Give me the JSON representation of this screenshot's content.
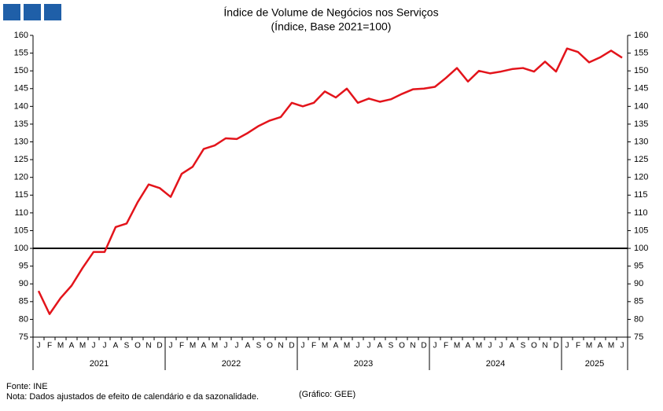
{
  "chart_data": {
    "type": "line",
    "title": "Índice de Volume de Negócios nos Serviços",
    "subtitle": "(Índice, Base 2021=100)",
    "categories": [
      "J",
      "F",
      "M",
      "A",
      "M",
      "J",
      "J",
      "A",
      "S",
      "O",
      "N",
      "D",
      "J",
      "F",
      "M",
      "A",
      "M",
      "J",
      "J",
      "A",
      "S",
      "O",
      "N",
      "D",
      "J",
      "F",
      "M",
      "A",
      "M",
      "J",
      "J",
      "A",
      "S",
      "O",
      "N",
      "D",
      "J",
      "F",
      "M",
      "A",
      "M",
      "J",
      "J",
      "A",
      "S",
      "O",
      "N",
      "D",
      "J",
      "F",
      "M",
      "A",
      "M",
      "J"
    ],
    "years": [
      "2021",
      "2022",
      "2023",
      "2024",
      "2025"
    ],
    "series": [
      {
        "color": "#e3141b",
        "values": [
          88,
          81.5,
          86,
          89.5,
          94.5,
          99,
          99,
          106,
          107,
          113,
          118,
          117,
          114.5,
          121,
          123,
          128,
          129,
          131,
          130.8,
          132.5,
          134.5,
          136,
          137,
          141,
          140,
          141,
          144.2,
          142.5,
          145,
          141,
          142.2,
          141.3,
          142,
          143.5,
          144.8,
          145,
          145.5,
          148,
          150.8,
          147,
          150,
          149.3,
          149.8,
          150.5,
          150.8,
          149.8,
          152.6,
          149.8,
          156.3,
          155.3,
          152.4,
          153.8,
          155.7,
          153.7
        ]
      }
    ],
    "reference_line": 100,
    "ylim": [
      75,
      160
    ],
    "yticks": [
      75,
      80,
      85,
      90,
      95,
      100,
      105,
      110,
      115,
      120,
      125,
      130,
      135,
      140,
      145,
      150,
      155,
      160
    ],
    "source": "Fonte: INE",
    "note": "Nota: Dados  ajustados  de efeito de calendário e da sazonalidade.",
    "credit": "(Gráfico: GEE)"
  }
}
